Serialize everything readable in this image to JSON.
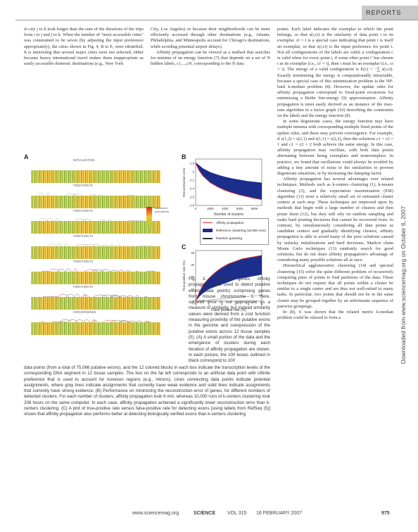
{
  "header": {
    "section": "REPORTS"
  },
  "sidebar_download": "Downloaded from www.sciencemag.org on October 6, 2007",
  "col1": [
    "in city j to k took longer than the sum of the durations of the trips from i to j and j to k. When the number of \"most accessible cities\" was constrained to be seven (by adjusting the input preference appropriately), the cities shown in Fig. 4, B to E, were identified. It is interesting that several major cities were not selected, either because heavy international travel makes them inappropriate as easily accessible domestic destinations (e.g., New York"
  ],
  "col2": [
    "City, Los Angeles) or because their neighborhoods can be more efficiently accessed through other destinations (e.g., Atlanta, Philadelphia, and Minneapolis account for Chicago's destinations, while avoiding potential airport delays).",
    "Affinity propagation can be viewed as a method that searches for minima of an energy function (7) that depends on a set of N hidden labels, c1,...,cN, corresponding to the N data"
  ],
  "col3": [
    "points. Each label indicates the exemplar to which the point belongs, so that s(i,ci) is the similarity of data point i to its exemplar. ci = i is a special case indicating that point i is itself an exemplar, so that s(i,ci) is the input preference for point i. Not all configurations of the labels are valid; a configuration c is valid when for every point i, if some other point i′ has chosen i as its exemplar (i.e., ci′ = i), then i must be an exemplar (i.e., ci = i). The energy of a valid configuration is E(c) = −∑ s(i,ci). Exactly minimizing the energy is computationally intractable, because a special case of this minimization problem is the NP-hard k-median problem (8). However, the update rules for affinity propagation correspond to fixed-point recursions for minimizing a Bethe free-energy (9) approximation. Affinity propagation is most easily derived as an instance of the max-sum algorithm in a factor graph (10) describing the constraints on the labels and the energy function (8).",
    "In some degenerate cases, the energy function may have multiple minima with corresponding multiple fixed points of the update rules, and these may prevent convergence. For example, if s(1,2) = s(2,1) and s(1,1) = s(2,2), then the solutions c1 = c2 = 1 and c1 = c2 = 2 both achieve the same energy. In this case, affinity propagation may oscillate, with both data points alternating between being exemplars and nonexemplars. In practice, we found that oscillations could always be avoided by adding a tiny amount of noise to the similarities to prevent degenerate situations, or by increasing the damping factor.",
    "Affinity propagation has several advantages over related techniques. Methods such as k-centers clustering (1), k-means clustering (2), and the expectation maximization (EM) algorithm (11) store a relatively small set of estimated cluster centers at each step. These techniques are improved upon by methods that begin with a large number of clusters and then prune them (12), but they still rely on random sampling and make hard pruning decisions that cannot be recovered from. In contrast, by simultaneously considering all data points as candidate centers and gradually identifying clusters, affinity propagation is able to avoid many of the poor solutions caused by unlucky initializations and hard decisions. Markov chain Monte Carlo techniques (13) randomly search for good solutions, but do not share affinity propagation's advantage of considering many possible solutions all at once.",
    "Hierarchical agglomerative clustering (14) and spectral clustering (15) solve the quite different problem of recursively comparing pairs of points to find partitions of the data. These techniques do not require that all points within a cluster be similar to a single center and are thus not well-suited to many tasks. In particular, two points that should not be in the same cluster may be grouped together by an unfortunate sequence of pairwise groupings.",
    "In (8), it was shown that the related metric k-median problem could be relaxed to form a"
  ],
  "figure": {
    "labels": [
      "A",
      "B",
      "C"
    ],
    "panel_a_strips": [
      "INITIALIZATION",
      "ITERATION #1",
      "ITERATION #2",
      "ITERATION #3",
      "ITERATION #4",
      "ITERATION #5",
      "CONVERGENCE"
    ],
    "scale": [
      "Expression",
      "(normalized)",
      "",
      "",
      "",
      ""
    ],
    "legend": [
      {
        "name": "Affinity propagation",
        "color": "#e0302a"
      },
      {
        "name": "Reference clustering (10,000 runs)",
        "color": "#1b2e8c"
      },
      {
        "name": "Random guessing",
        "color": "#333333"
      }
    ]
  },
  "chart_data": [
    {
      "type": "area",
      "panel": "B",
      "ylabel": "Reconstruction error",
      "xlabel": "Number of clusters",
      "xticks": [
        "0",
        "2000",
        "4000",
        "6000",
        "8000"
      ],
      "yticks": [
        "-1.8",
        "-2",
        "-2.2",
        "-2.4",
        "-2.6",
        "-2.8"
      ],
      "xlim": [
        0,
        9000
      ],
      "ylim": [
        -2.8,
        -1.7
      ],
      "series": [
        {
          "name": "Affinity propagation",
          "x": [
            0,
            500,
            1000,
            2000,
            3000,
            4000,
            5000,
            6000,
            7000,
            8000,
            9000
          ],
          "y": [
            -1.8,
            -1.98,
            -2.1,
            -2.26,
            -2.36,
            -2.44,
            -2.5,
            -2.55,
            -2.59,
            -2.63,
            -2.66
          ]
        },
        {
          "name": "Reference clustering (10,000 runs)",
          "x": [
            0,
            500,
            1000,
            2000,
            3000,
            4000,
            5000,
            6000,
            7000,
            8000,
            9000
          ],
          "y": [
            -1.78,
            -1.85,
            -1.92,
            -2.01,
            -2.07,
            -2.12,
            -2.16,
            -2.19,
            -2.22,
            -2.24,
            -2.26
          ]
        }
      ]
    },
    {
      "type": "area",
      "panel": "C",
      "ylabel": "True positive rate (%)",
      "xlabel": "False positive rate (%)",
      "xticks": [
        "0",
        "1",
        "2",
        "3",
        "4",
        "5"
      ],
      "yticks": [
        "0",
        "10",
        "20",
        "30",
        "40"
      ],
      "xlim": [
        0,
        5
      ],
      "ylim": [
        0,
        42
      ],
      "series": [
        {
          "name": "Affinity propagation",
          "x": [
            0,
            0.3,
            0.6,
            1,
            1.5,
            2,
            2.5,
            3,
            3.5,
            4,
            4.5,
            5
          ],
          "y": [
            0,
            8,
            14,
            19,
            24,
            28,
            31,
            33,
            35,
            36,
            37,
            38
          ]
        },
        {
          "name": "Reference clustering (10,000 runs)",
          "x": [
            0,
            0.3,
            0.6,
            1,
            1.5,
            2,
            2.5,
            3,
            3.5,
            4,
            4.5,
            5
          ],
          "y": [
            0,
            4,
            7,
            10,
            12,
            14,
            16,
            18,
            19,
            20,
            21,
            22
          ]
        },
        {
          "name": "Random guessing",
          "x": [
            0,
            5
          ],
          "y": [
            0,
            5
          ]
        }
      ]
    }
  ],
  "caption_right": [
    "Fig. 3. Detecting genes. Affinity propagation was used to detect putative exons (data points) comprising genes from mouse chromosome 1. Here, squared error is not appropriate as a measure of similarity, but instead similarity values were derived from a cost function measuring proximity of the putative exons in the genome and coexpression of the putative exons across 12 tissue samples (5). (A) A small portion of the data and the emergence of clusters during each iteration of affinity propagation are shown. In each picture, the 100 boxes outlined in black correspond to 100"
  ],
  "caption_full": [
    "data points (from a total of 75,066 putative exons), and the 12 colored blocks in each box indicate the transcription levels of the corresponding DNA segment in 12 tissue samples. The box on the far left corresponds to an artificial data point with infinite preference that is used to account for nonexon regions (e.g., introns). Lines connecting data points indicate potential assignments, where gray lines indicate assignments that currently have weak evidence and solid lines indicate assignments that currently have strong evidence. (B) Performance on minimizing the reconstruction error of genes, for different numbers of detected clusters. For each number of clusters, affinity propagation took 6 min, whereas 10,000 runs of k-centers clustering took 208 hours on the same computer. In each case, affinity propagation achieved a significantly lower reconstruction error than k-centers clustering. (C) A plot of true-positive rate versus false-positive rate for detecting exons [using labels from RefSeq (5)] shows that affinity propagation also performs better at detecting biologically verified exons than k-centers clustering."
  ],
  "footer": {
    "url": "www.sciencemag.org",
    "journal": "SCIENCE",
    "volume": "VOL 315",
    "date": "16 FEBRUARY 2007",
    "page": "975"
  }
}
